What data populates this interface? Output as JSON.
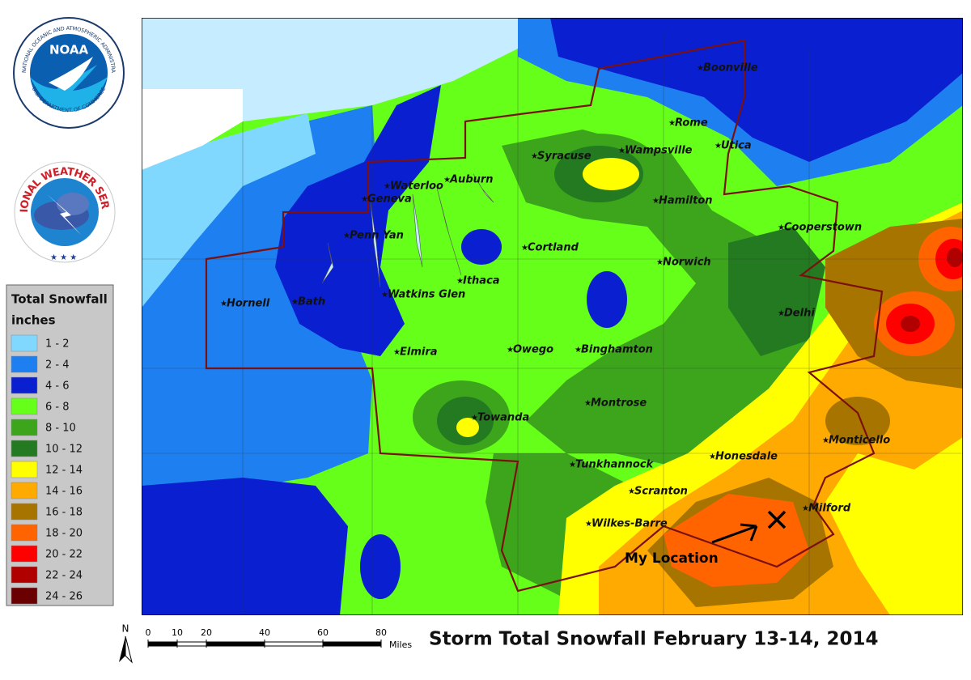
{
  "logos": {
    "noaa_ring": "NATIONAL OCEANIC AND ATMOSPHERIC ADMINISTRATION",
    "noaa_bottom": "U.S. DEPARTMENT OF COMMERCE",
    "noaa": "NOAA",
    "nws_ring": "NATIONAL WEATHER SERVICE"
  },
  "legend": {
    "title": "Total Snowfall",
    "subtitle": "inches",
    "items": [
      {
        "label": "1 - 2",
        "color": "#80d8ff"
      },
      {
        "label": "2 - 4",
        "color": "#1e7ff0"
      },
      {
        "label": "4 - 6",
        "color": "#0a1fd0"
      },
      {
        "label": "6 - 8",
        "color": "#66ff1a"
      },
      {
        "label": "8 - 10",
        "color": "#3ca51c"
      },
      {
        "label": "10 - 12",
        "color": "#237a20"
      },
      {
        "label": "12 - 14",
        "color": "#ffff00"
      },
      {
        "label": "14 - 16",
        "color": "#ffaa00"
      },
      {
        "label": "16 - 18",
        "color": "#a87400"
      },
      {
        "label": "18 - 20",
        "color": "#ff6400"
      },
      {
        "label": "20 - 22",
        "color": "#ff0000"
      },
      {
        "label": "22 - 24",
        "color": "#b00000"
      },
      {
        "label": "24 - 26",
        "color": "#6b0000"
      }
    ]
  },
  "cities": [
    "Boonville",
    "Rome",
    "Syracuse",
    "Wampsville",
    "Utica",
    "Auburn",
    "Waterloo",
    "Geneva",
    "Hamilton",
    "Cooperstown",
    "Penn Yan",
    "Cortland",
    "Norwich",
    "Ithaca",
    "Hornell",
    "Bath",
    "Watkins Glen",
    "Delhi",
    "Owego",
    "Elmira",
    "Binghamton",
    "Montrose",
    "Towanda",
    "Monticello",
    "Honesdale",
    "Tunkhannock",
    "Scranton",
    "Milford",
    "Wilkes-Barre"
  ],
  "annotation": "My Location",
  "north": "N",
  "scale": {
    "ticks": [
      0,
      10,
      20,
      40,
      60,
      80
    ],
    "unit": "Miles"
  },
  "title": "Storm Total Snowfall February 13-14, 2014"
}
